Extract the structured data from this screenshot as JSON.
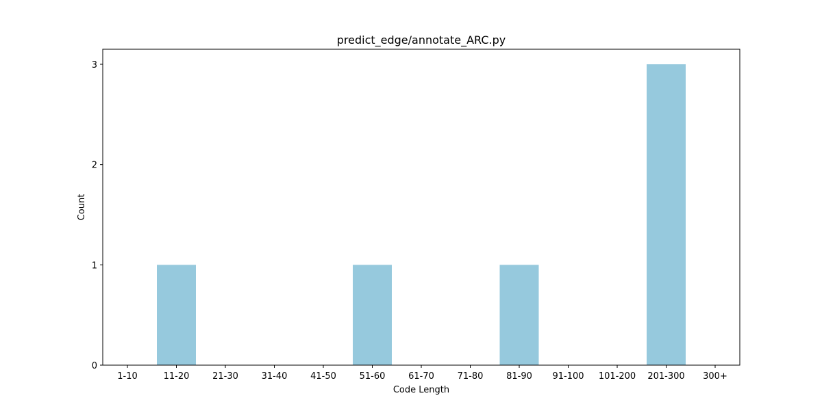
{
  "chart_data": {
    "type": "bar",
    "title": "predict_edge/annotate_ARC.py",
    "xlabel": "Code Length",
    "ylabel": "Count",
    "categories": [
      "1-10",
      "11-20",
      "21-30",
      "31-40",
      "41-50",
      "51-60",
      "61-70",
      "71-80",
      "81-90",
      "91-100",
      "101-200",
      "201-300",
      "300+"
    ],
    "values": [
      0,
      1,
      0,
      0,
      0,
      1,
      0,
      0,
      1,
      0,
      0,
      3,
      0
    ],
    "ylim": [
      0,
      3.15
    ],
    "yticks": [
      0,
      1,
      2,
      3
    ],
    "grid": false,
    "legend": "none",
    "colors": {
      "bar": "#96c9dd",
      "axis": "#000000",
      "background": "#ffffff"
    }
  }
}
